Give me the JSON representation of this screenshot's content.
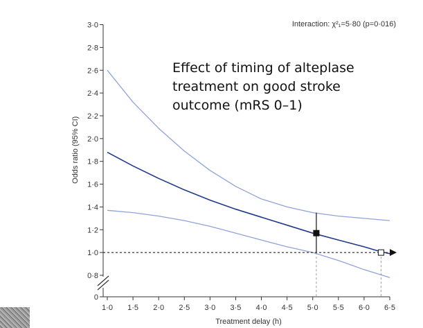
{
  "chart_data": {
    "type": "line",
    "title": "Effect of timing of alteplase treatment on good stroke outcome (mRS 0–1)",
    "title_lines": [
      "Effect of timing of alteplase",
      "treatment on good stroke",
      "outcome (mRS 0–1)"
    ],
    "annotation": "Interaction: χ²₁=5·80 (p=0·016)",
    "xlabel": "Treatment delay (h)",
    "ylabel": "Odds ratio (95% CI)",
    "xlim": [
      1.0,
      6.5
    ],
    "ylim": [
      0.7,
      3.0
    ],
    "x_ticks": [
      1.0,
      1.5,
      2.0,
      2.5,
      3.0,
      3.5,
      4.0,
      4.5,
      5.0,
      5.5,
      6.0,
      6.5
    ],
    "x_tick_labels": [
      "1·0",
      "1·5",
      "2·0",
      "2·5",
      "3·0",
      "3·5",
      "4·0",
      "4·5",
      "5·0",
      "5·5",
      "6·0",
      "6·5"
    ],
    "y_ticks": [
      0.8,
      1.0,
      1.2,
      1.4,
      1.6,
      1.8,
      2.0,
      2.2,
      2.4,
      2.6,
      2.8,
      3.0
    ],
    "y_tick_labels": [
      "0·8",
      "1·0",
      "1·2",
      "1·4",
      "1·6",
      "1·8",
      "2·0",
      "2·2",
      "2·4",
      "2·6",
      "2·8",
      "3·0"
    ],
    "y_zero_label": "0",
    "reference_line": 1.0,
    "series": [
      {
        "name": "Odds ratio",
        "role": "estimate",
        "x": [
          1.0,
          1.5,
          2.0,
          2.5,
          3.0,
          3.5,
          4.0,
          4.5,
          5.0,
          5.5,
          6.0,
          6.3,
          6.5
        ],
        "y": [
          1.88,
          1.76,
          1.65,
          1.55,
          1.46,
          1.38,
          1.31,
          1.24,
          1.17,
          1.11,
          1.05,
          1.01,
          0.99
        ]
      },
      {
        "name": "Upper 95% CI",
        "role": "upper",
        "x": [
          1.0,
          1.5,
          2.0,
          2.5,
          3.0,
          3.5,
          4.0,
          4.5,
          5.0,
          5.5,
          6.0,
          6.5
        ],
        "y": [
          2.6,
          2.32,
          2.09,
          1.89,
          1.72,
          1.58,
          1.47,
          1.4,
          1.35,
          1.32,
          1.3,
          1.28
        ]
      },
      {
        "name": "Lower 95% CI",
        "role": "lower",
        "x": [
          1.0,
          1.5,
          2.0,
          2.5,
          3.0,
          3.5,
          4.0,
          4.5,
          5.0,
          5.5,
          6.0,
          6.5
        ],
        "y": [
          1.37,
          1.35,
          1.32,
          1.28,
          1.23,
          1.17,
          1.11,
          1.05,
          1.0,
          0.93,
          0.85,
          0.78
        ]
      }
    ],
    "markers": [
      {
        "name": "upper-limit-point",
        "x": 5.07,
        "y": 1.17,
        "style": "filled-square",
        "ci": [
          1.0,
          1.35
        ]
      },
      {
        "name": "crossing-point",
        "x": 6.33,
        "y": 1.0,
        "style": "open-square"
      }
    ],
    "dashed_drops": [
      5.07,
      6.33
    ],
    "colors": {
      "estimate": "#1f3a8a",
      "ci": "#8fa3d9",
      "axis": "#333333",
      "marker": "#111111"
    }
  }
}
